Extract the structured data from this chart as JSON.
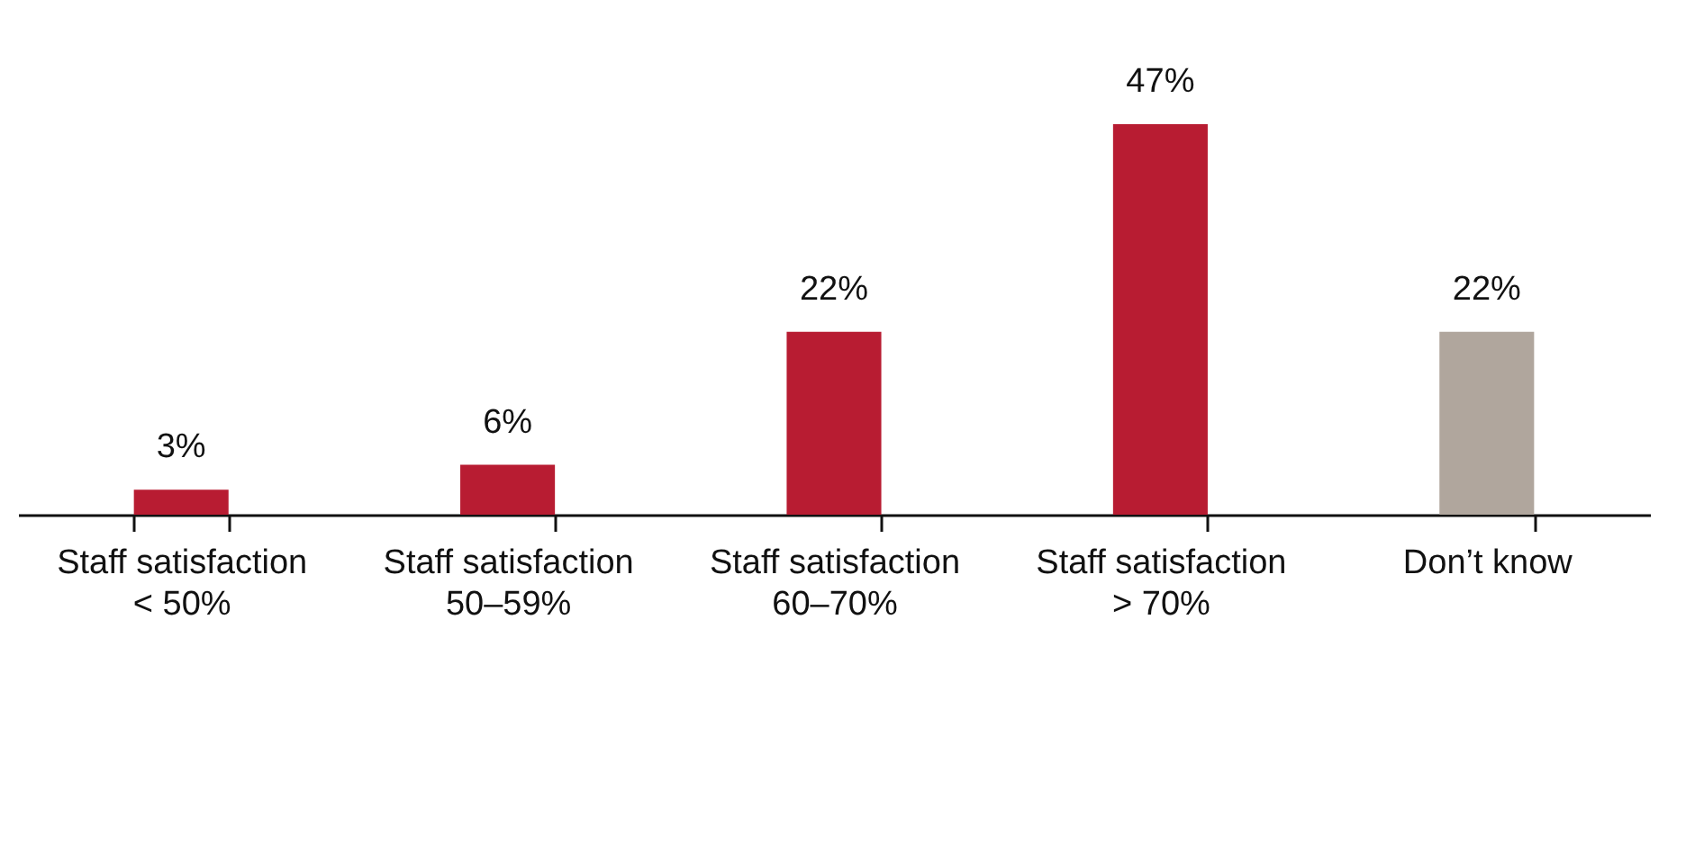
{
  "chart_data": {
    "type": "bar",
    "categories": [
      "Staff satisfaction\n< 50%",
      "Staff satisfaction\n50–59%",
      "Staff satisfaction\n60–70%",
      "Staff satisfaction\n> 70%",
      "Don’t know"
    ],
    "values": [
      3,
      6,
      22,
      47,
      22
    ],
    "colors": [
      "#b81c32",
      "#b81c32",
      "#b81c32",
      "#b81c32",
      "#b0a69d"
    ],
    "value_labels": [
      "3%",
      "6%",
      "22%",
      "47%",
      "22%"
    ],
    "grid": false
  }
}
